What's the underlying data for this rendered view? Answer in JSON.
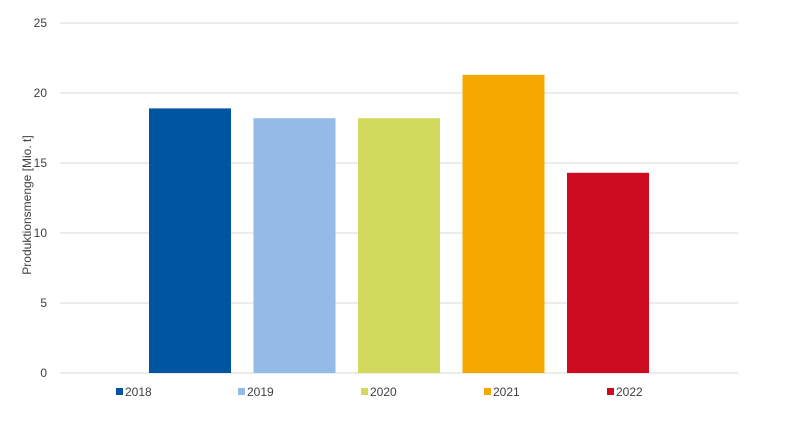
{
  "chart_data": {
    "type": "bar",
    "title": "",
    "xlabel": "",
    "ylabel": "Produktionsmenge [Mio. t]",
    "ylim": [
      0,
      25
    ],
    "yticks": [
      0,
      5,
      10,
      15,
      20,
      25
    ],
    "grid": true,
    "legend_position": "bottom",
    "series": [
      {
        "name": "2018",
        "value": 18.9,
        "color": "#0055a0"
      },
      {
        "name": "2019",
        "value": 18.2,
        "color": "#93bbe5"
      },
      {
        "name": "2020",
        "value": 18.2,
        "color": "#d2da5e"
      },
      {
        "name": "2021",
        "value": 21.3,
        "color": "#f5a800"
      },
      {
        "name": "2022",
        "value": 14.3,
        "color": "#cc0a20"
      }
    ]
  }
}
